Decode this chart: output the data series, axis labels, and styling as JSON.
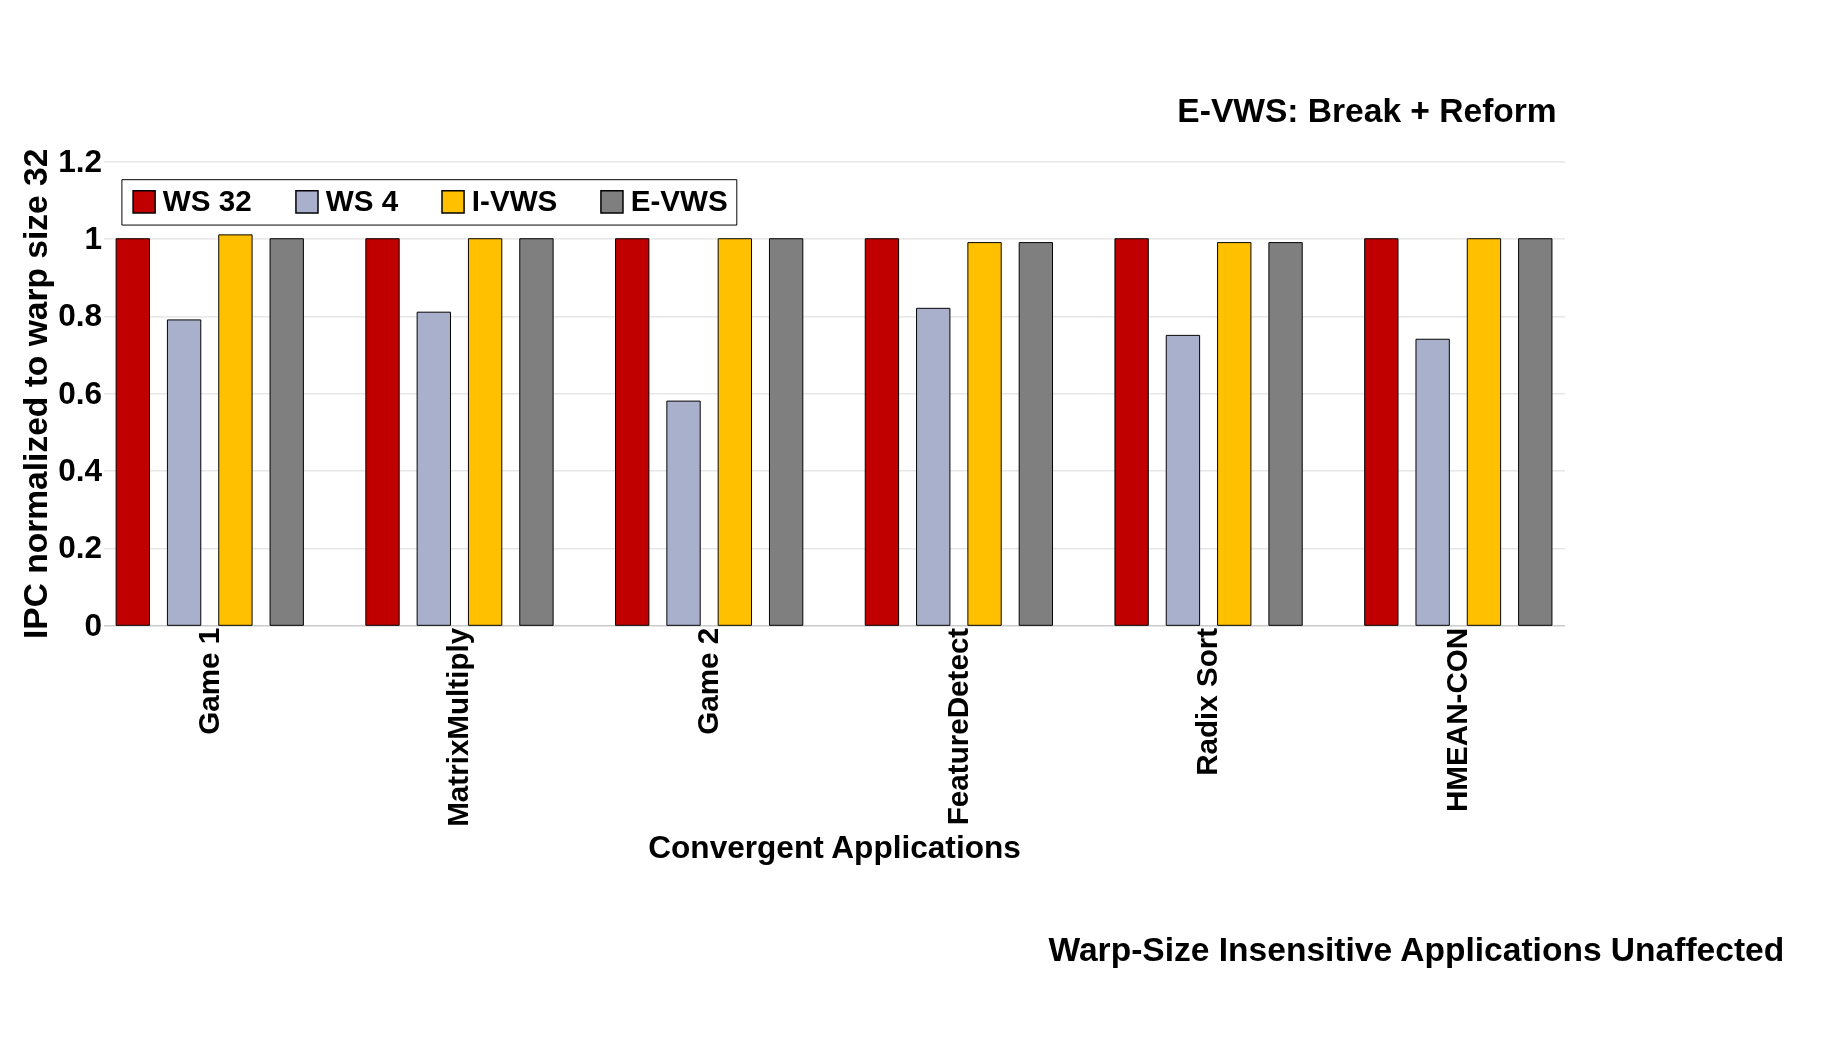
{
  "chart_data": {
    "type": "bar",
    "xlabel": "Convergent Applications",
    "ylabel": "IPC normalized to warp size 32",
    "categories": [
      "Game 1",
      "MatrixMultiply",
      "Game 2",
      "FeatureDetect",
      "Radix Sort",
      "HMEAN-CON"
    ],
    "series": [
      {
        "name": "WS 32",
        "color": "#c00000",
        "values": [
          1,
          1,
          1,
          1,
          1,
          1
        ]
      },
      {
        "name": "WS 4",
        "color": "#a9b0cc",
        "values": [
          0.79,
          0.81,
          0.58,
          0.82,
          0.75,
          0.74
        ]
      },
      {
        "name": "I-VWS",
        "color": "#ffc000",
        "values": [
          1.01,
          1,
          1,
          0.99,
          0.99,
          1
        ]
      },
      {
        "name": "E-VWS",
        "color": "#7f7f7f",
        "values": [
          1,
          1,
          1,
          0.99,
          0.99,
          1
        ]
      }
    ],
    "ylim": [
      0,
      1.2
    ],
    "yticks": [
      0,
      0.2,
      0.4,
      0.6,
      0.8,
      1,
      1.2
    ],
    "grid": "y",
    "legend": "top left",
    "annotations": [
      "E-VWS: Break + Reform",
      "Warp-Size Insensitive Applications Unaffected"
    ]
  }
}
